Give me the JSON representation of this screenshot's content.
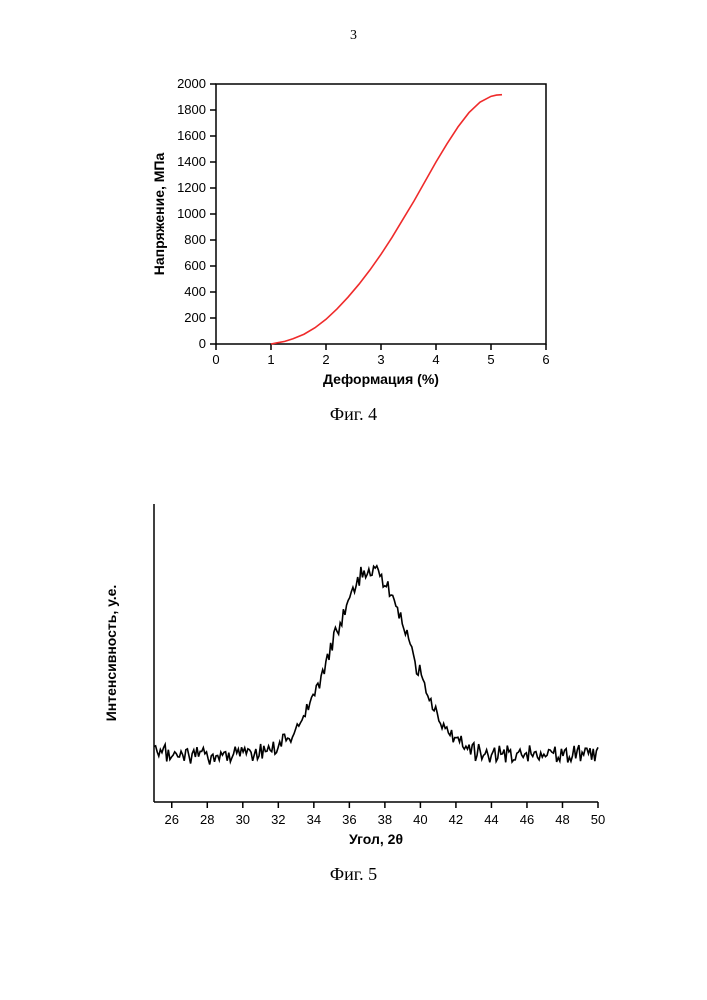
{
  "page_number": "3",
  "fig4": {
    "type": "line",
    "caption": "Фиг. 4",
    "xlabel": "Деформация (%)",
    "ylabel": "Напряжение, МПа",
    "xlim": [
      0,
      6
    ],
    "ylim": [
      0,
      2000
    ],
    "xtick_step": 1,
    "ytick_step": 200,
    "xticks": [
      0,
      1,
      2,
      3,
      4,
      5,
      6
    ],
    "yticks": [
      0,
      200,
      400,
      600,
      800,
      1000,
      1200,
      1400,
      1600,
      1800,
      2000
    ],
    "series_color": "#ef2b2b",
    "line_width": 1.6,
    "background_color": "#ffffff",
    "data": [
      [
        1.0,
        0
      ],
      [
        1.1,
        8
      ],
      [
        1.25,
        20
      ],
      [
        1.4,
        40
      ],
      [
        1.6,
        75
      ],
      [
        1.8,
        125
      ],
      [
        2.0,
        190
      ],
      [
        2.2,
        270
      ],
      [
        2.4,
        360
      ],
      [
        2.6,
        460
      ],
      [
        2.8,
        570
      ],
      [
        3.0,
        690
      ],
      [
        3.2,
        820
      ],
      [
        3.4,
        960
      ],
      [
        3.6,
        1100
      ],
      [
        3.8,
        1250
      ],
      [
        4.0,
        1400
      ],
      [
        4.2,
        1540
      ],
      [
        4.4,
        1670
      ],
      [
        4.6,
        1780
      ],
      [
        4.8,
        1860
      ],
      [
        5.0,
        1905
      ],
      [
        5.1,
        1915
      ],
      [
        5.2,
        1918
      ]
    ]
  },
  "fig5": {
    "type": "line",
    "caption": "Фиг. 5",
    "xlabel": "Угол, 2θ",
    "ylabel": "Интенсивность, у.е.",
    "xlim": [
      25,
      50
    ],
    "ylim": [
      0,
      100
    ],
    "xtick_step": 2,
    "xticks": [
      26,
      28,
      30,
      32,
      34,
      36,
      38,
      40,
      42,
      44,
      46,
      48,
      50
    ],
    "series_color": "#000000",
    "line_width": 1.6,
    "background_color": "#ffffff",
    "peak_center": 37.2,
    "peak_fwhm": 5.0,
    "baseline": 16,
    "peak_height": 62,
    "noise_amp": 2.4,
    "n_points": 280
  }
}
